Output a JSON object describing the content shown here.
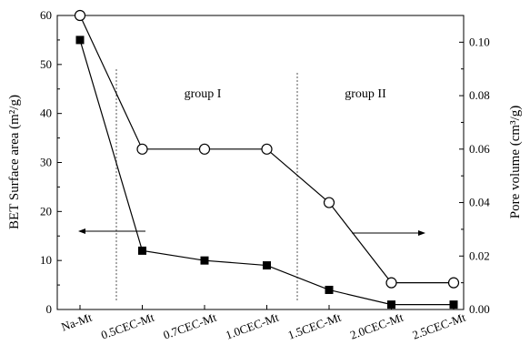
{
  "chart_data": {
    "type": "line",
    "categories": [
      "Na-Mt",
      "0.5CEC-Mt",
      "0.7CEC-Mt",
      "1.0CEC-Mt",
      "1.5CEC-Mt",
      "2.0CEC-Mt",
      "2.5CEC-Mt"
    ],
    "ylabel_left": "BET Surface area (m²/g)",
    "ylabel_right": "Pore volume (cm³/g)",
    "ylim_left": [
      0,
      60
    ],
    "ylim_right": [
      0.0,
      0.11
    ],
    "yticks_left": [
      "0",
      "10",
      "20",
      "30",
      "40",
      "50",
      "60"
    ],
    "yticks_right": [
      "0.00",
      "0.02",
      "0.04",
      "0.06",
      "0.08",
      "0.10"
    ],
    "series": [
      {
        "axis": "left",
        "marker": "filled-square",
        "values": [
          55,
          12,
          10,
          9,
          4,
          1,
          1
        ]
      },
      {
        "axis": "right",
        "marker": "open-circle",
        "values": [
          0.11,
          0.06,
          0.06,
          0.06,
          0.04,
          0.01,
          0.01
        ]
      }
    ],
    "annotations": {
      "group1": "group  I",
      "group2": "group  II",
      "left_arrow": "points to left axis",
      "right_arrow": "points to right axis"
    },
    "grid": false
  }
}
